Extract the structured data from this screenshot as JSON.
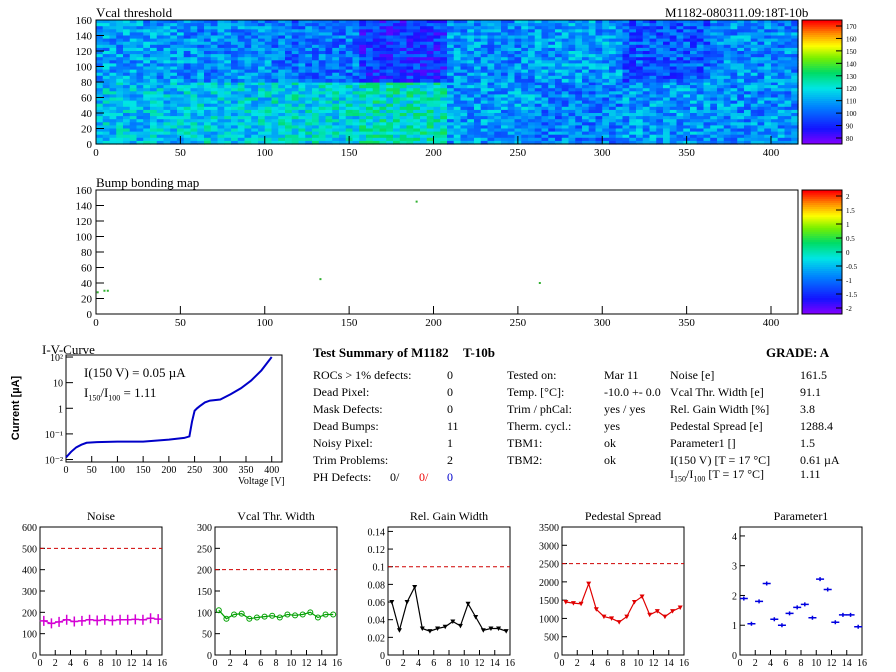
{
  "header": {
    "id_text": "M1182-080311.09:18T-10b"
  },
  "vcal_map": {
    "title": "Vcal threshold",
    "x_ticks": [
      "0",
      "50",
      "100",
      "150",
      "200",
      "250",
      "300",
      "350",
      "400"
    ],
    "y_ticks": [
      "0",
      "20",
      "40",
      "60",
      "80",
      "100",
      "120",
      "140",
      "160"
    ],
    "colorbar_labels": [
      "170",
      "160",
      "150",
      "140",
      "130",
      "120",
      "110",
      "100",
      "90",
      "80"
    ]
  },
  "bump_map": {
    "title": "Bump bonding map",
    "x_ticks": [
      "0",
      "50",
      "100",
      "150",
      "200",
      "250",
      "300",
      "350",
      "400"
    ],
    "y_ticks": [
      "0",
      "20",
      "40",
      "60",
      "80",
      "100",
      "120",
      "140",
      "160"
    ],
    "colorbar_labels": [
      "2",
      "1.5",
      "1",
      "0.5",
      "0",
      "-0.5",
      "-1",
      "-1.5",
      "-2"
    ]
  },
  "iv": {
    "title": "I-V-Curve",
    "ylabel": "Current [µA]",
    "xlabel": "Voltage [V]",
    "annot1": "I(150 V) = 0.05 µA",
    "annot2_main": "I",
    "annot2_sub1": "150",
    "annot2_mid": "/I",
    "annot2_sub2": "100",
    "annot2_val": " =  1.11",
    "x_ticks": [
      "0",
      "50",
      "100",
      "150",
      "200",
      "250",
      "300",
      "350",
      "400"
    ],
    "y_ticks": [
      "10⁻²",
      "10⁻¹",
      "1",
      "10",
      "10²"
    ]
  },
  "summary": {
    "title": "Test Summary of M1182",
    "run": "T-10b",
    "grade": "GRADE:  A",
    "left_rows": [
      {
        "label": "ROCs > 1% defects:",
        "value": "0"
      },
      {
        "label": "Dead Pixel:",
        "value": "0"
      },
      {
        "label": "Mask Defects:",
        "value": "0"
      },
      {
        "label": "Dead Bumps:",
        "value": "11"
      },
      {
        "label": "Noisy Pixel:",
        "value": "1"
      },
      {
        "label": "Trim Problems:",
        "value": "2"
      }
    ],
    "ph_label": "PH Defects:",
    "ph_v1": "0/",
    "ph_v2": "0/",
    "ph_v3": "0",
    "mid_rows": [
      {
        "label": "Tested on:",
        "value": "Mar 11"
      },
      {
        "label": "Temp. [°C]:",
        "value": "-10.0 +- 0.0"
      },
      {
        "label": "Trim / phCal:",
        "value": "yes / yes"
      },
      {
        "label": "Therm. cycl.:",
        "value": "yes"
      },
      {
        "label": "TBM1:",
        "value": "ok"
      },
      {
        "label": "TBM2:",
        "value": "ok"
      }
    ],
    "right_rows": [
      {
        "label": "Noise [e]",
        "value": "161.5"
      },
      {
        "label": "Vcal Thr. Width [e]",
        "value": "91.1"
      },
      {
        "label": "Rel. Gain Width [%]",
        "value": "3.8"
      },
      {
        "label": "Pedestal Spread [e]",
        "value": "1288.4"
      },
      {
        "label": "Parameter1 []",
        "value": "1.5"
      },
      {
        "label": "I(150 V) [T = 17 °C]",
        "value": "0.61 µA"
      }
    ],
    "ratio_label_I": "I",
    "ratio_sub1": "150",
    "ratio_mid": "/I",
    "ratio_sub2": "100",
    "ratio_tail": "  [T = 17 °C]",
    "ratio_value": "1.11"
  },
  "colors": {
    "noise": "#d400d4",
    "vcal": "#00a000",
    "gain": "#000000",
    "pedestal": "#e00000",
    "param": "#0000e0",
    "iv": "#0000c8",
    "limit_line": "#d00000"
  },
  "chart_data": [
    {
      "type": "heatmap",
      "title": "Vcal threshold",
      "x_range": [
        0,
        416
      ],
      "y_range": [
        0,
        160
      ],
      "z_range": [
        80,
        175
      ],
      "rocs": [
        {
          "row": "bottom",
          "roc": 0,
          "mean": 118
        },
        {
          "row": "bottom",
          "roc": 1,
          "mean": 120
        },
        {
          "row": "bottom",
          "roc": 2,
          "mean": 122
        },
        {
          "row": "bottom",
          "roc": 3,
          "mean": 126
        },
        {
          "row": "bottom",
          "roc": 4,
          "mean": 112
        },
        {
          "row": "bottom",
          "roc": 5,
          "mean": 108
        },
        {
          "row": "bottom",
          "roc": 6,
          "mean": 112
        },
        {
          "row": "bottom",
          "roc": 7,
          "mean": 110
        },
        {
          "row": "top",
          "roc": 0,
          "mean": 112
        },
        {
          "row": "top",
          "roc": 1,
          "mean": 110
        },
        {
          "row": "top",
          "roc": 2,
          "mean": 106
        },
        {
          "row": "top",
          "roc": 3,
          "mean": 96
        },
        {
          "row": "top",
          "roc": 4,
          "mean": 110
        },
        {
          "row": "top",
          "roc": 5,
          "mean": 112
        },
        {
          "row": "top",
          "roc": 6,
          "mean": 102
        },
        {
          "row": "top",
          "roc": 7,
          "mean": 110
        }
      ]
    },
    {
      "type": "scatter",
      "title": "Bump bonding map",
      "x_range": [
        0,
        416
      ],
      "y_range": [
        0,
        160
      ],
      "points": [
        [
          5,
          30
        ],
        [
          7,
          30
        ],
        [
          1,
          28
        ],
        [
          190,
          145
        ],
        [
          133,
          45
        ],
        [
          263,
          40
        ]
      ]
    },
    {
      "type": "line",
      "title": "I-V-Curve",
      "xlabel": "Voltage [V]",
      "ylabel": "Current [µA]",
      "log_y": true,
      "xlim": [
        0,
        420
      ],
      "ylim": [
        0.008,
        100
      ],
      "x": [
        0,
        10,
        20,
        30,
        40,
        60,
        100,
        150,
        200,
        230,
        240,
        245,
        250,
        255,
        260,
        270,
        280,
        300,
        320,
        340,
        360,
        380,
        400
      ],
      "y": [
        0.012,
        0.02,
        0.03,
        0.038,
        0.045,
        0.048,
        0.05,
        0.05,
        0.06,
        0.07,
        0.08,
        0.3,
        0.8,
        1.0,
        1.2,
        1.7,
        2.0,
        2.2,
        3.5,
        6.0,
        12,
        30,
        100
      ]
    },
    {
      "type": "scatter",
      "title": "Noise",
      "ylim": [
        0,
        600
      ],
      "limit": 500,
      "x": [
        0,
        1,
        2,
        3,
        4,
        5,
        6,
        7,
        8,
        9,
        10,
        11,
        12,
        13,
        14,
        15
      ],
      "y": [
        160,
        148,
        155,
        165,
        157,
        160,
        165,
        162,
        165,
        162,
        165,
        165,
        167,
        165,
        172,
        168
      ]
    },
    {
      "type": "line",
      "title": "Vcal Thr. Width",
      "ylim": [
        0,
        300
      ],
      "limit": 200,
      "x": [
        0,
        1,
        2,
        3,
        4,
        5,
        6,
        7,
        8,
        9,
        10,
        11,
        12,
        13,
        14,
        15
      ],
      "y": [
        105,
        85,
        95,
        97,
        85,
        88,
        90,
        92,
        88,
        95,
        93,
        95,
        100,
        88,
        95,
        95
      ]
    },
    {
      "type": "line",
      "title": "Rel. Gain Width",
      "ylim": [
        0,
        0.145
      ],
      "limit": 0.1,
      "x": [
        0,
        1,
        2,
        3,
        4,
        5,
        6,
        7,
        8,
        9,
        10,
        11,
        12,
        13,
        14,
        15
      ],
      "y": [
        0.06,
        0.028,
        0.06,
        0.077,
        0.03,
        0.027,
        0.03,
        0.032,
        0.038,
        0.033,
        0.058,
        0.043,
        0.028,
        0.03,
        0.03,
        0.027
      ]
    },
    {
      "type": "line",
      "title": "Pedestal Spread",
      "ylim": [
        0,
        3500
      ],
      "limit": 2500,
      "x": [
        0,
        1,
        2,
        3,
        4,
        5,
        6,
        7,
        8,
        9,
        10,
        11,
        12,
        13,
        14,
        15
      ],
      "y": [
        1450,
        1420,
        1400,
        1950,
        1250,
        1050,
        1000,
        900,
        1050,
        1450,
        1600,
        1100,
        1200,
        1050,
        1200,
        1300
      ]
    },
    {
      "type": "scatter",
      "title": "Parameter1",
      "ylim": [
        0,
        4.3
      ],
      "x": [
        0,
        1,
        2,
        3,
        4,
        5,
        6,
        7,
        8,
        9,
        10,
        11,
        12,
        13,
        14,
        15
      ],
      "y": [
        1.9,
        1.05,
        1.8,
        2.4,
        1.2,
        1.0,
        1.4,
        1.6,
        1.7,
        1.25,
        2.55,
        2.2,
        1.1,
        1.35,
        1.35,
        0.95
      ]
    }
  ]
}
